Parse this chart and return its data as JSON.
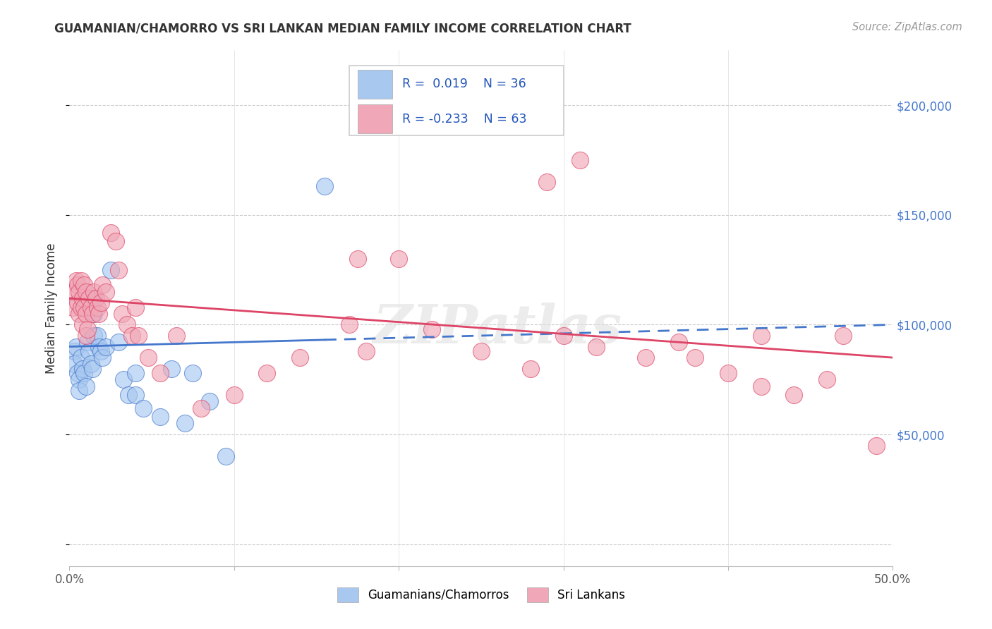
{
  "title": "GUAMANIAN/CHAMORRO VS SRI LANKAN MEDIAN FAMILY INCOME CORRELATION CHART",
  "source": "Source: ZipAtlas.com",
  "ylabel": "Median Family Income",
  "yticks": [
    0,
    50000,
    100000,
    150000,
    200000
  ],
  "ytick_labels": [
    "",
    "$50,000",
    "$100,000",
    "$150,000",
    "$200,000"
  ],
  "xlim": [
    0.0,
    0.5
  ],
  "ylim": [
    -10000,
    225000
  ],
  "background_color": "#ffffff",
  "blue_color": "#a8c8f0",
  "pink_color": "#f0a8b8",
  "blue_line_color": "#4477cc",
  "pink_line_color": "#dd4466",
  "ytick_color": "#4477cc",
  "r_blue": "0.019",
  "n_blue": "36",
  "r_pink": "-0.233",
  "n_pink": "63",
  "legend_label_blue": "Guamanians/Chamorros",
  "legend_label_pink": "Sri Lankans",
  "watermark": "ZIPatlas",
  "blue_line_x0": 0.0,
  "blue_line_y0": 90000,
  "blue_line_x1": 0.5,
  "blue_line_y1": 100000,
  "pink_line_x0": 0.0,
  "pink_line_y0": 112000,
  "pink_line_x1": 0.5,
  "pink_line_y1": 85000,
  "blue_points_x": [
    0.003,
    0.003,
    0.004,
    0.005,
    0.006,
    0.006,
    0.007,
    0.008,
    0.009,
    0.01,
    0.011,
    0.012,
    0.013,
    0.014,
    0.015,
    0.015,
    0.016,
    0.017,
    0.018,
    0.019,
    0.02,
    0.022,
    0.025,
    0.03,
    0.033,
    0.036,
    0.04,
    0.04,
    0.045,
    0.055,
    0.062,
    0.07,
    0.075,
    0.085,
    0.095,
    0.155
  ],
  "blue_points_y": [
    88000,
    82000,
    90000,
    78000,
    75000,
    70000,
    85000,
    80000,
    78000,
    72000,
    92000,
    88000,
    82000,
    80000,
    95000,
    105000,
    112000,
    95000,
    90000,
    88000,
    85000,
    90000,
    125000,
    92000,
    75000,
    68000,
    78000,
    68000,
    62000,
    58000,
    80000,
    55000,
    78000,
    65000,
    40000,
    163000
  ],
  "pink_points_x": [
    0.002,
    0.003,
    0.004,
    0.005,
    0.005,
    0.006,
    0.006,
    0.007,
    0.007,
    0.008,
    0.008,
    0.009,
    0.009,
    0.01,
    0.01,
    0.01,
    0.011,
    0.012,
    0.013,
    0.014,
    0.015,
    0.016,
    0.017,
    0.018,
    0.019,
    0.02,
    0.022,
    0.025,
    0.028,
    0.03,
    0.032,
    0.035,
    0.038,
    0.04,
    0.042,
    0.048,
    0.055,
    0.065,
    0.08,
    0.1,
    0.12,
    0.14,
    0.17,
    0.18,
    0.2,
    0.22,
    0.25,
    0.28,
    0.3,
    0.32,
    0.35,
    0.37,
    0.4,
    0.42,
    0.44,
    0.46,
    0.175,
    0.29,
    0.31,
    0.38,
    0.42,
    0.47,
    0.49
  ],
  "pink_points_y": [
    108000,
    115000,
    120000,
    110000,
    118000,
    105000,
    115000,
    108000,
    120000,
    112000,
    100000,
    118000,
    108000,
    95000,
    105000,
    115000,
    98000,
    112000,
    108000,
    105000,
    115000,
    112000,
    108000,
    105000,
    110000,
    118000,
    115000,
    142000,
    138000,
    125000,
    105000,
    100000,
    95000,
    108000,
    95000,
    85000,
    78000,
    95000,
    62000,
    68000,
    78000,
    85000,
    100000,
    88000,
    130000,
    98000,
    88000,
    80000,
    95000,
    90000,
    85000,
    92000,
    78000,
    95000,
    68000,
    75000,
    130000,
    165000,
    175000,
    85000,
    72000,
    95000,
    45000
  ]
}
